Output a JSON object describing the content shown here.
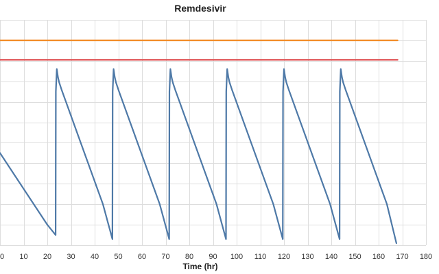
{
  "chart_data": {
    "type": "line",
    "title": "Remdesivir",
    "xlabel": "Time (hr)",
    "ylabel": "",
    "xlim": [
      0,
      180
    ],
    "xticks": [
      0,
      10,
      20,
      30,
      40,
      50,
      60,
      70,
      80,
      90,
      100,
      110,
      120,
      130,
      140,
      150,
      160,
      170,
      180
    ],
    "xtick_labels": [
      "0",
      "10",
      "20",
      "30",
      "40",
      "50",
      "60",
      "70",
      "80",
      "90",
      "100",
      "110",
      "120",
      "130",
      "140",
      "150",
      "160",
      "170",
      "180"
    ],
    "ylim": [
      0,
      11
    ],
    "grid": true,
    "series": [
      {
        "color": "#f28e2b",
        "style": "reference-line",
        "x": [
          0,
          168
        ],
        "y": [
          10,
          10
        ]
      },
      {
        "color": "#e15759",
        "style": "reference-line",
        "x": [
          0,
          168
        ],
        "y": [
          9.05,
          9.05
        ]
      },
      {
        "color": "#4e79a7",
        "style": "concentration",
        "x": [
          0,
          20,
          23.5,
          23.6,
          24,
          24.5,
          25,
          26,
          43.5,
          47.5,
          47.6,
          48,
          48.5,
          49,
          50,
          67.5,
          71.5,
          71.6,
          72,
          72.5,
          73,
          74,
          91.5,
          95.5,
          95.6,
          96,
          96.5,
          97,
          98,
          115.5,
          119.5,
          119.6,
          120,
          120.5,
          121,
          122,
          139.5,
          143.5,
          143.6,
          144,
          144.5,
          145,
          146,
          163.5,
          167.5
        ],
        "y": [
          4.5,
          1,
          0.5,
          7.5,
          8.6,
          8.2,
          7.95,
          7.6,
          2.0,
          0.3,
          7.5,
          8.6,
          8.2,
          7.95,
          7.6,
          2.0,
          0.3,
          7.5,
          8.6,
          8.2,
          7.95,
          7.6,
          2.0,
          0.3,
          7.5,
          8.6,
          8.2,
          7.95,
          7.6,
          2.0,
          0.3,
          7.5,
          8.6,
          8.2,
          7.95,
          7.6,
          2.0,
          0.3,
          7.5,
          8.6,
          8.2,
          7.95,
          7.6,
          2.0,
          0.1
        ]
      }
    ]
  }
}
